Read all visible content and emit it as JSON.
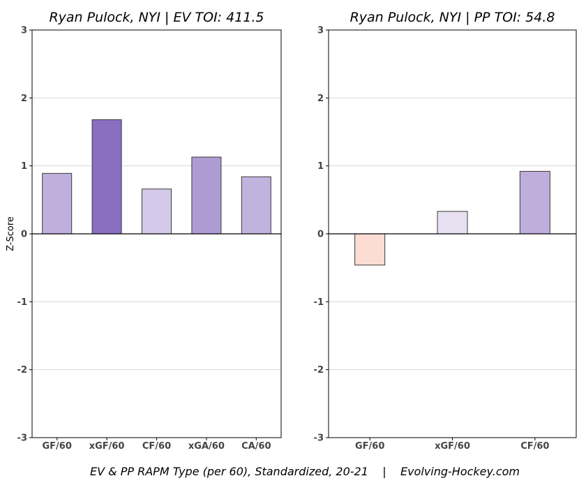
{
  "caption": "EV & PP RAPM Type (per 60), Standardized, 20-21    |    Evolving-Hockey.com",
  "chart_data": [
    {
      "type": "bar",
      "title": "Ryan Pulock, NYI  |  EV TOI: 411.5",
      "ylabel": "Z-Score",
      "ylim": [
        -3,
        3
      ],
      "yticks": [
        -3,
        -2,
        -1,
        0,
        1,
        2,
        3
      ],
      "grid": true,
      "categories": [
        "GF/60",
        "xGF/60",
        "CF/60",
        "xGA/60",
        "CA/60"
      ],
      "values": [
        0.89,
        1.68,
        0.66,
        1.13,
        0.84
      ],
      "colors": [
        "#c0aedc",
        "#8a6fc1",
        "#d4c8e8",
        "#ae9bd4",
        "#c2b2de"
      ]
    },
    {
      "type": "bar",
      "title": "Ryan Pulock, NYI  |  PP TOI: 54.8",
      "ylabel": "",
      "ylim": [
        -3,
        3
      ],
      "yticks": [
        -3,
        -2,
        -1,
        0,
        1,
        2,
        3
      ],
      "grid": true,
      "categories": [
        "GF/60",
        "xGF/60",
        "CF/60"
      ],
      "values": [
        -0.46,
        0.33,
        0.92
      ],
      "colors": [
        "#fddcd3",
        "#e7e0f1",
        "#bfaedb"
      ]
    }
  ]
}
